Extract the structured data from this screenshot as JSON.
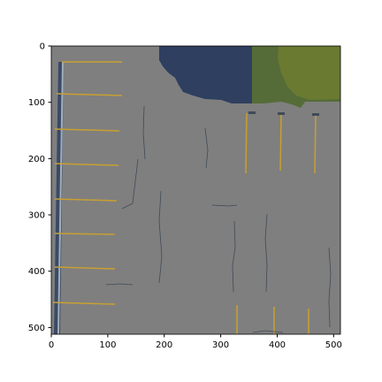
{
  "figure": {
    "kind": "image-plot",
    "x_axis": {
      "range": [
        0,
        512
      ],
      "ticks": [
        "0",
        "100",
        "200",
        "300",
        "400",
        "500"
      ]
    },
    "y_axis": {
      "range": [
        0,
        512
      ],
      "inverted": true,
      "ticks": [
        "0",
        "100",
        "200",
        "300",
        "400",
        "500"
      ]
    },
    "colors": {
      "background_gray": "#7f7f7f",
      "water_blue": "#2f3f5f",
      "vegetation_green": "#4f6a3a",
      "vegetation_olive": "#6f7f30",
      "lane_marking_yellow": "#c8a030",
      "crack_dark": "#404a58",
      "frame_border": "#000000"
    }
  }
}
